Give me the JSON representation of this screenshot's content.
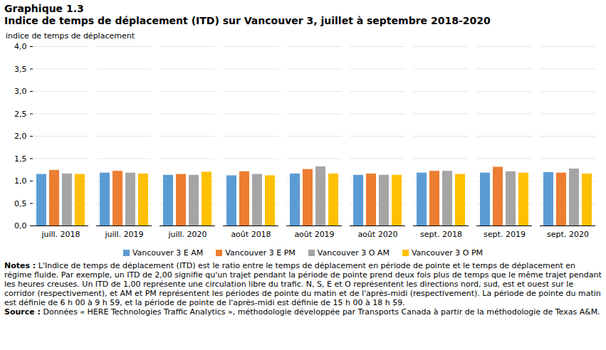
{
  "chart_data": {
    "type": "bar",
    "title": "Graphique  1.3",
    "subtitle": "Indice de temps de déplacement (ITD) sur Vancouver 3, juillet  à septembre 2018-2020",
    "y_label": "indice de temps de déplacement",
    "categories": [
      "juill. 2018",
      "juill. 2019",
      "juill. 2020",
      "août 2018",
      "août 2019",
      "août 2020",
      "sept. 2018",
      "sept. 2019",
      "sept. 2020"
    ],
    "series": [
      {
        "name": "Vancouver 3 E AM",
        "color": "#5b9bd5",
        "values": [
          1.15,
          1.18,
          1.13,
          1.12,
          1.16,
          1.13,
          1.18,
          1.18,
          1.19
        ]
      },
      {
        "name": "Vancouver 3 E PM",
        "color": "#ed7d31",
        "values": [
          1.24,
          1.22,
          1.15,
          1.21,
          1.26,
          1.16,
          1.22,
          1.31,
          1.18
        ]
      },
      {
        "name": "Vancouver 3 O AM",
        "color": "#a5a5a5",
        "values": [
          1.16,
          1.18,
          1.13,
          1.15,
          1.32,
          1.13,
          1.22,
          1.21,
          1.27
        ]
      },
      {
        "name": "Vancouver 3 O PM",
        "color": "#ffc000",
        "values": [
          1.15,
          1.16,
          1.2,
          1.12,
          1.16,
          1.13,
          1.15,
          1.18,
          1.16
        ]
      }
    ],
    "ylim": [
      0,
      4
    ],
    "yticks": [
      {
        "value": 0,
        "label": "0,0"
      },
      {
        "value": 0.5,
        "label": "0,5"
      },
      {
        "value": 1,
        "label": "1,0"
      },
      {
        "value": 1.5,
        "label": "1,5"
      },
      {
        "value": 2,
        "label": "2,0"
      },
      {
        "value": 2.5,
        "label": "2,5"
      },
      {
        "value": 3,
        "label": "3,0"
      },
      {
        "value": 3.5,
        "label": "3,5"
      },
      {
        "value": 4,
        "label": "4,0"
      }
    ],
    "grid": true,
    "legend": "bottom",
    "notes_label": "Notes :",
    "notes": "L'Indice de temps de déplacement (ITD) est le ratio  entre le temps de déplacement en période de pointe et le temps de déplacement en régime fluide. Par exemple, un ITD de 2,00 signifie qu'un trajet pendant la période de pointe prend deux fois plus de temps que le même trajet pendant les heures creuses. Un ITD de 1,00 représente une circulation libre du trafic. N, S, E et O représentent les directions nord, sud, est et ouest sur le corridor (respectivement), et AM et PM représentent les périodes de pointe du matin et de l'après-midi (respectivement). La période de pointe du matin est définie de 6 h 00 à 9 h 59, et la période de pointe de l'après-midi est définie de 15 h 00 à 18 h 59.",
    "source_label": "Source :",
    "source": "Données « HERE Technologies Traffic Analytics », méthodologie développée par Transports Canada à partir de la méthodologie de Texas A&M."
  }
}
